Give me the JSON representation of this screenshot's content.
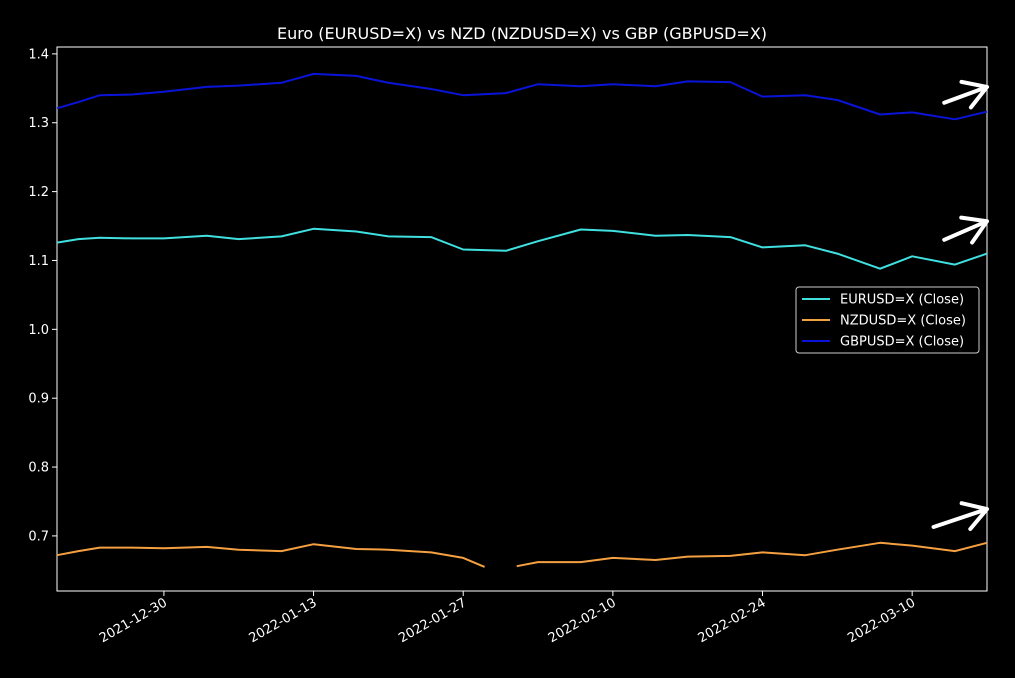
{
  "chart_data": {
    "type": "line",
    "title": "Euro (EURUSD=X) vs NZD (NZDUSD=X) vs GBP (GBPUSD=X)",
    "xlabel": "",
    "ylabel": "",
    "x_range": [
      "2021-12-20",
      "2022-03-17"
    ],
    "ylim": [
      0.62,
      1.41
    ],
    "y_ticks": [
      "0.7",
      "0.8",
      "0.9",
      "1.0",
      "1.1",
      "1.2",
      "1.3",
      "1.4"
    ],
    "x_ticks": [
      "2021-12-30",
      "2022-01-13",
      "2022-01-27",
      "2022-02-10",
      "2022-02-24",
      "2022-03-10"
    ],
    "grid": false,
    "legend_position": "center-right",
    "series": [
      {
        "name": "EURUSD=X (Close)",
        "color": "#40e0e0",
        "x": [
          "2021-12-20",
          "2021-12-22",
          "2021-12-24",
          "2021-12-27",
          "2021-12-30",
          "2022-01-03",
          "2022-01-06",
          "2022-01-10",
          "2022-01-13",
          "2022-01-17",
          "2022-01-20",
          "2022-01-24",
          "2022-01-27",
          "2022-01-31",
          "2022-02-03",
          "2022-02-07",
          "2022-02-10",
          "2022-02-14",
          "2022-02-17",
          "2022-02-21",
          "2022-02-24",
          "2022-02-28",
          "2022-03-03",
          "2022-03-07",
          "2022-03-10",
          "2022-03-14",
          "2022-03-17"
        ],
        "values": [
          1.126,
          1.131,
          1.133,
          1.132,
          1.132,
          1.136,
          1.131,
          1.135,
          1.146,
          1.142,
          1.135,
          1.134,
          1.116,
          1.114,
          1.128,
          1.145,
          1.143,
          1.136,
          1.137,
          1.134,
          1.119,
          1.122,
          1.11,
          1.088,
          1.106,
          1.094,
          1.11
        ]
      },
      {
        "name": "NZDUSD=X (Close)",
        "color": "#f5a040",
        "x": [
          "2021-12-20",
          "2021-12-22",
          "2021-12-24",
          "2021-12-27",
          "2021-12-30",
          "2022-01-03",
          "2022-01-06",
          "2022-01-10",
          "2022-01-13",
          "2022-01-17",
          "2022-01-20",
          "2022-01-24",
          "2022-01-27",
          "2022-01-29",
          null,
          "2022-02-01",
          "2022-02-03",
          "2022-02-07",
          "2022-02-10",
          "2022-02-14",
          "2022-02-17",
          "2022-02-21",
          "2022-02-24",
          "2022-02-28",
          "2022-03-03",
          "2022-03-07",
          "2022-03-10",
          "2022-03-14",
          "2022-03-17"
        ],
        "values": [
          0.672,
          0.678,
          0.683,
          0.683,
          0.682,
          0.684,
          0.68,
          0.678,
          0.688,
          0.681,
          0.68,
          0.676,
          0.668,
          0.655,
          null,
          0.656,
          0.662,
          0.662,
          0.668,
          0.665,
          0.67,
          0.671,
          0.676,
          0.672,
          0.68,
          0.69,
          0.686,
          0.678,
          0.69
        ]
      },
      {
        "name": "GBPUSD=X (Close)",
        "color": "#0a14d8",
        "x": [
          "2021-12-20",
          "2021-12-22",
          "2021-12-24",
          "2021-12-27",
          "2021-12-30",
          "2022-01-03",
          "2022-01-06",
          "2022-01-10",
          "2022-01-13",
          "2022-01-17",
          "2022-01-20",
          "2022-01-24",
          "2022-01-27",
          "2022-01-31",
          "2022-02-03",
          "2022-02-07",
          "2022-02-10",
          "2022-02-14",
          "2022-02-17",
          "2022-02-21",
          "2022-02-24",
          "2022-02-28",
          "2022-03-03",
          "2022-03-07",
          "2022-03-10",
          "2022-03-14",
          "2022-03-17"
        ],
        "values": [
          1.321,
          1.33,
          1.34,
          1.341,
          1.345,
          1.352,
          1.354,
          1.358,
          1.371,
          1.368,
          1.358,
          1.349,
          1.34,
          1.343,
          1.356,
          1.353,
          1.356,
          1.353,
          1.36,
          1.359,
          1.338,
          1.34,
          1.333,
          1.312,
          1.315,
          1.305,
          1.316
        ]
      }
    ],
    "annotations": [
      {
        "type": "arrow",
        "color": "#ffffff",
        "from": [
          "2022-03-13",
          1.329
        ],
        "to": [
          "2022-03-17",
          1.352
        ]
      },
      {
        "type": "arrow",
        "color": "#ffffff",
        "from": [
          "2022-03-13",
          1.13
        ],
        "to": [
          "2022-03-17",
          1.157
        ]
      },
      {
        "type": "arrow",
        "color": "#ffffff",
        "from": [
          "2022-03-12",
          0.713
        ],
        "to": [
          "2022-03-17",
          0.739
        ]
      }
    ]
  }
}
